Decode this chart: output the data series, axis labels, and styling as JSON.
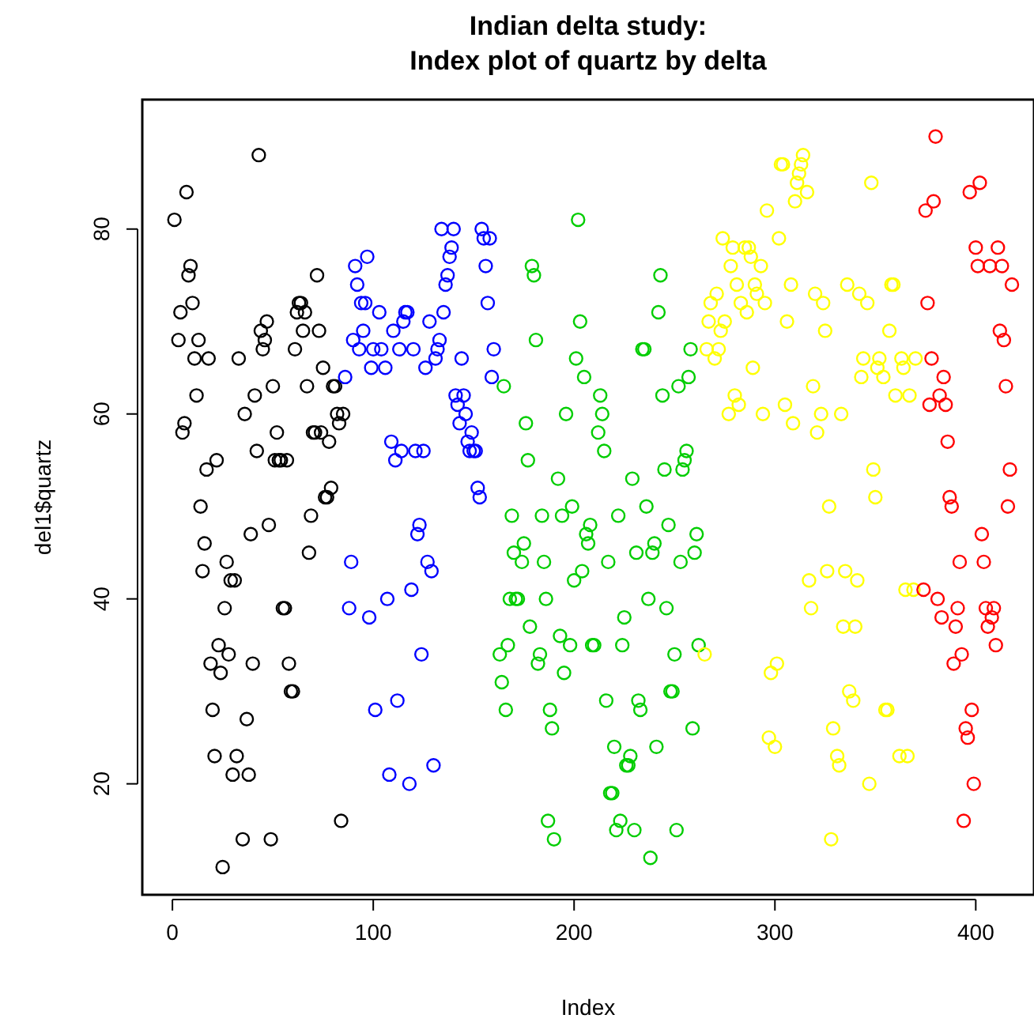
{
  "chart_data": {
    "type": "scatter",
    "title": "Indian delta study:\nIndex plot of quartz by delta",
    "xlabel": "Index",
    "ylabel": "del1$quartz",
    "xlim": [
      -15,
      429
    ],
    "ylim": [
      8,
      94
    ],
    "xticks": [
      0,
      100,
      200,
      300,
      400
    ],
    "yticks": [
      20,
      40,
      60,
      80
    ],
    "grid": false,
    "legend": false,
    "marker": "circle",
    "series": [
      {
        "color": "#000000",
        "x": [
          1,
          3,
          4,
          5,
          6,
          7,
          8,
          9,
          10,
          11,
          12,
          13,
          14,
          15,
          16,
          17,
          18,
          19,
          20,
          21,
          22,
          23,
          24,
          25,
          26,
          27,
          28,
          29,
          30,
          31,
          32,
          33,
          35,
          36,
          37,
          38,
          39,
          40,
          41,
          42,
          43,
          44,
          45,
          46,
          47,
          48,
          49,
          50,
          51,
          52,
          53,
          54,
          55,
          56,
          57,
          58,
          59,
          60,
          61,
          62,
          63,
          64,
          65,
          66,
          67,
          68,
          69,
          70,
          71,
          72,
          73,
          74,
          75,
          76,
          77,
          78,
          79,
          80,
          81,
          82,
          83,
          84,
          85
        ],
        "values": [
          81,
          68,
          71,
          58,
          59,
          84,
          75,
          76,
          72,
          66,
          62,
          68,
          50,
          43,
          46,
          54,
          66,
          33,
          28,
          23,
          55,
          35,
          32,
          11,
          39,
          44,
          34,
          42,
          21,
          42,
          23,
          66,
          14,
          60,
          27,
          21,
          47,
          33,
          62,
          56,
          88,
          69,
          67,
          68,
          70,
          48,
          14,
          63,
          55,
          58,
          55,
          55,
          39,
          39,
          55,
          33,
          30,
          30,
          67,
          71,
          72,
          72,
          69,
          71,
          63,
          45,
          49,
          58,
          58,
          75,
          69,
          58,
          65,
          51,
          51,
          57,
          52,
          63,
          63,
          60,
          59,
          16,
          60
        ]
      },
      {
        "color": "#0000ff",
        "x": [
          86,
          88,
          89,
          90,
          91,
          92,
          93,
          94,
          95,
          96,
          97,
          98,
          99,
          100,
          101,
          103,
          104,
          106,
          107,
          108,
          109,
          110,
          111,
          112,
          113,
          114,
          115,
          116,
          117,
          118,
          119,
          120,
          121,
          122,
          123,
          124,
          125,
          126,
          127,
          128,
          129,
          130,
          131,
          132,
          133,
          134,
          135,
          136,
          137,
          138,
          139,
          140,
          141,
          142,
          143,
          144,
          145,
          146,
          147,
          148,
          149,
          150,
          151,
          152,
          153,
          154,
          155,
          156,
          157,
          158,
          159,
          160
        ],
        "values": [
          64,
          39,
          44,
          68,
          76,
          74,
          67,
          72,
          69,
          72,
          77,
          38,
          65,
          67,
          28,
          71,
          67,
          65,
          40,
          21,
          57,
          69,
          55,
          29,
          67,
          56,
          70,
          71,
          71,
          20,
          41,
          67,
          56,
          47,
          48,
          34,
          56,
          65,
          44,
          70,
          43,
          22,
          66,
          67,
          68,
          80,
          71,
          74,
          75,
          77,
          78,
          80,
          62,
          61,
          59,
          66,
          62,
          60,
          57,
          56,
          58,
          56,
          56,
          52,
          51,
          80,
          79,
          76,
          72,
          79,
          64,
          67
        ]
      },
      {
        "color": "#00cd00",
        "x": [
          163,
          164,
          165,
          166,
          167,
          168,
          169,
          170,
          171,
          172,
          174,
          175,
          176,
          177,
          178,
          179,
          180,
          181,
          182,
          183,
          184,
          185,
          186,
          187,
          188,
          189,
          190,
          192,
          193,
          194,
          195,
          196,
          198,
          199,
          200,
          201,
          202,
          203,
          204,
          205,
          206,
          207,
          208,
          209,
          210,
          212,
          213,
          214,
          215,
          216,
          217,
          218,
          219,
          220,
          221,
          222,
          223,
          224,
          225,
          226,
          227,
          228,
          229,
          230,
          231,
          232,
          233,
          234,
          235,
          236,
          237,
          238,
          239,
          240,
          241,
          242,
          243,
          244,
          245,
          246,
          247,
          248,
          249,
          250,
          251,
          252,
          253,
          254,
          255,
          256,
          257,
          258,
          259,
          260,
          261,
          262
        ],
        "values": [
          34,
          31,
          63,
          28,
          35,
          40,
          49,
          45,
          40,
          40,
          44,
          46,
          59,
          55,
          37,
          76,
          75,
          68,
          33,
          34,
          49,
          44,
          40,
          16,
          28,
          26,
          14,
          53,
          36,
          49,
          32,
          60,
          35,
          50,
          42,
          66,
          81,
          70,
          43,
          64,
          47,
          46,
          48,
          35,
          35,
          58,
          62,
          60,
          56,
          29,
          44,
          19,
          19,
          24,
          15,
          49,
          16,
          35,
          38,
          22,
          22,
          23,
          53,
          15,
          45,
          29,
          28,
          67,
          67,
          50,
          40,
          12,
          45,
          46,
          24,
          71,
          75,
          62,
          54,
          39,
          48,
          30,
          30,
          34,
          15,
          63,
          44,
          54,
          55,
          56,
          64,
          67,
          26,
          45,
          47,
          35
        ]
      },
      {
        "color": "#ffff00",
        "x": [
          265,
          266,
          267,
          268,
          270,
          271,
          272,
          273,
          274,
          275,
          277,
          278,
          279,
          280,
          281,
          282,
          283,
          285,
          286,
          287,
          288,
          289,
          290,
          291,
          293,
          294,
          295,
          296,
          297,
          298,
          300,
          301,
          302,
          303,
          304,
          305,
          306,
          308,
          309,
          310,
          311,
          312,
          313,
          314,
          316,
          317,
          318,
          319,
          320,
          321,
          323,
          324,
          325,
          326,
          327,
          328,
          329,
          331,
          332,
          333,
          334,
          335,
          336,
          337,
          339,
          340,
          341,
          342,
          343,
          344,
          346,
          347,
          348,
          349,
          350,
          351,
          352,
          354,
          355,
          356,
          357,
          358,
          359,
          360,
          362,
          363,
          364,
          365,
          366,
          367,
          369,
          370
        ],
        "values": [
          34,
          67,
          70,
          72,
          66,
          73,
          67,
          69,
          79,
          70,
          60,
          76,
          78,
          62,
          74,
          61,
          72,
          78,
          71,
          78,
          77,
          65,
          74,
          73,
          76,
          60,
          72,
          82,
          25,
          32,
          24,
          33,
          79,
          87,
          87,
          61,
          70,
          74,
          59,
          83,
          85,
          86,
          87,
          88,
          84,
          42,
          39,
          63,
          73,
          58,
          60,
          72,
          69,
          43,
          50,
          14,
          26,
          23,
          22,
          60,
          37,
          43,
          74,
          30,
          29,
          37,
          42,
          73,
          64,
          66,
          72,
          20,
          85,
          54,
          51,
          65,
          66,
          64,
          28,
          28,
          69,
          74,
          74,
          62,
          23,
          66,
          65,
          41,
          23,
          62,
          41,
          66
        ]
      },
      {
        "color": "#ff0000",
        "x": [
          374,
          375,
          376,
          377,
          378,
          379,
          380,
          381,
          382,
          383,
          384,
          385,
          386,
          387,
          388,
          389,
          390,
          391,
          392,
          393,
          394,
          395,
          396,
          397,
          398,
          399,
          400,
          401,
          402,
          403,
          404,
          405,
          406,
          407,
          408,
          409,
          410,
          411,
          412,
          413,
          414,
          415,
          416,
          417,
          418
        ],
        "values": [
          41,
          82,
          72,
          61,
          66,
          83,
          90,
          40,
          62,
          38,
          64,
          61,
          57,
          51,
          50,
          33,
          37,
          39,
          44,
          34,
          16,
          26,
          25,
          84,
          28,
          20,
          78,
          76,
          85,
          47,
          44,
          39,
          37,
          76,
          38,
          39,
          35,
          78,
          69,
          76,
          68,
          63,
          50,
          54,
          74
        ]
      }
    ]
  }
}
